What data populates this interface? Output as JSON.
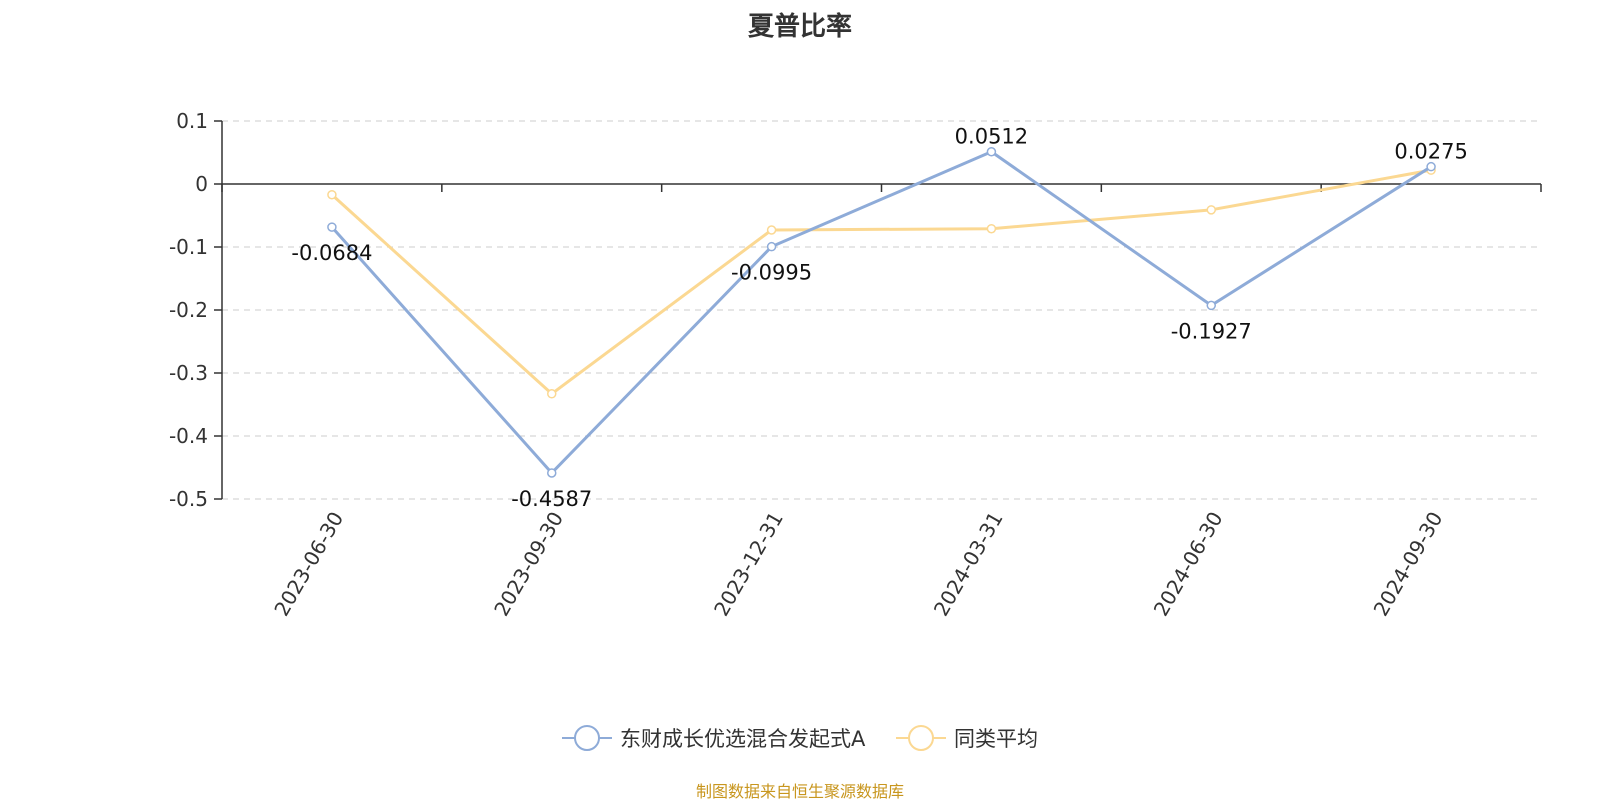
{
  "chart_data": {
    "type": "line",
    "title": "夏普比率",
    "categories": [
      "2023-06-30",
      "2023-09-30",
      "2023-12-31",
      "2024-03-31",
      "2024-06-30",
      "2024-09-30"
    ],
    "series": [
      {
        "name": "东财成长优选混合发起式A",
        "values": [
          -0.0684,
          -0.4587,
          -0.0995,
          0.0512,
          -0.1927,
          0.0275
        ],
        "labels": [
          "-0.0684",
          "-0.4587",
          "-0.0995",
          "0.0512",
          "-0.1927",
          "0.0275"
        ],
        "color": "#8eabd8",
        "show_labels": true
      },
      {
        "name": "同类平均",
        "values": [
          -0.017,
          -0.333,
          -0.073,
          -0.071,
          -0.041,
          0.022
        ],
        "color": "#fbd892",
        "show_labels": false
      }
    ],
    "y_ticks": [
      "0.1",
      "0",
      "-0.1",
      "-0.2",
      "-0.3",
      "-0.4",
      "-0.5"
    ],
    "ylim": [
      -0.5,
      0.1
    ],
    "xlabel": "",
    "ylabel": "",
    "grid": true,
    "legend_position": "bottom-center"
  },
  "source": "制图数据来自恒生聚源数据库"
}
